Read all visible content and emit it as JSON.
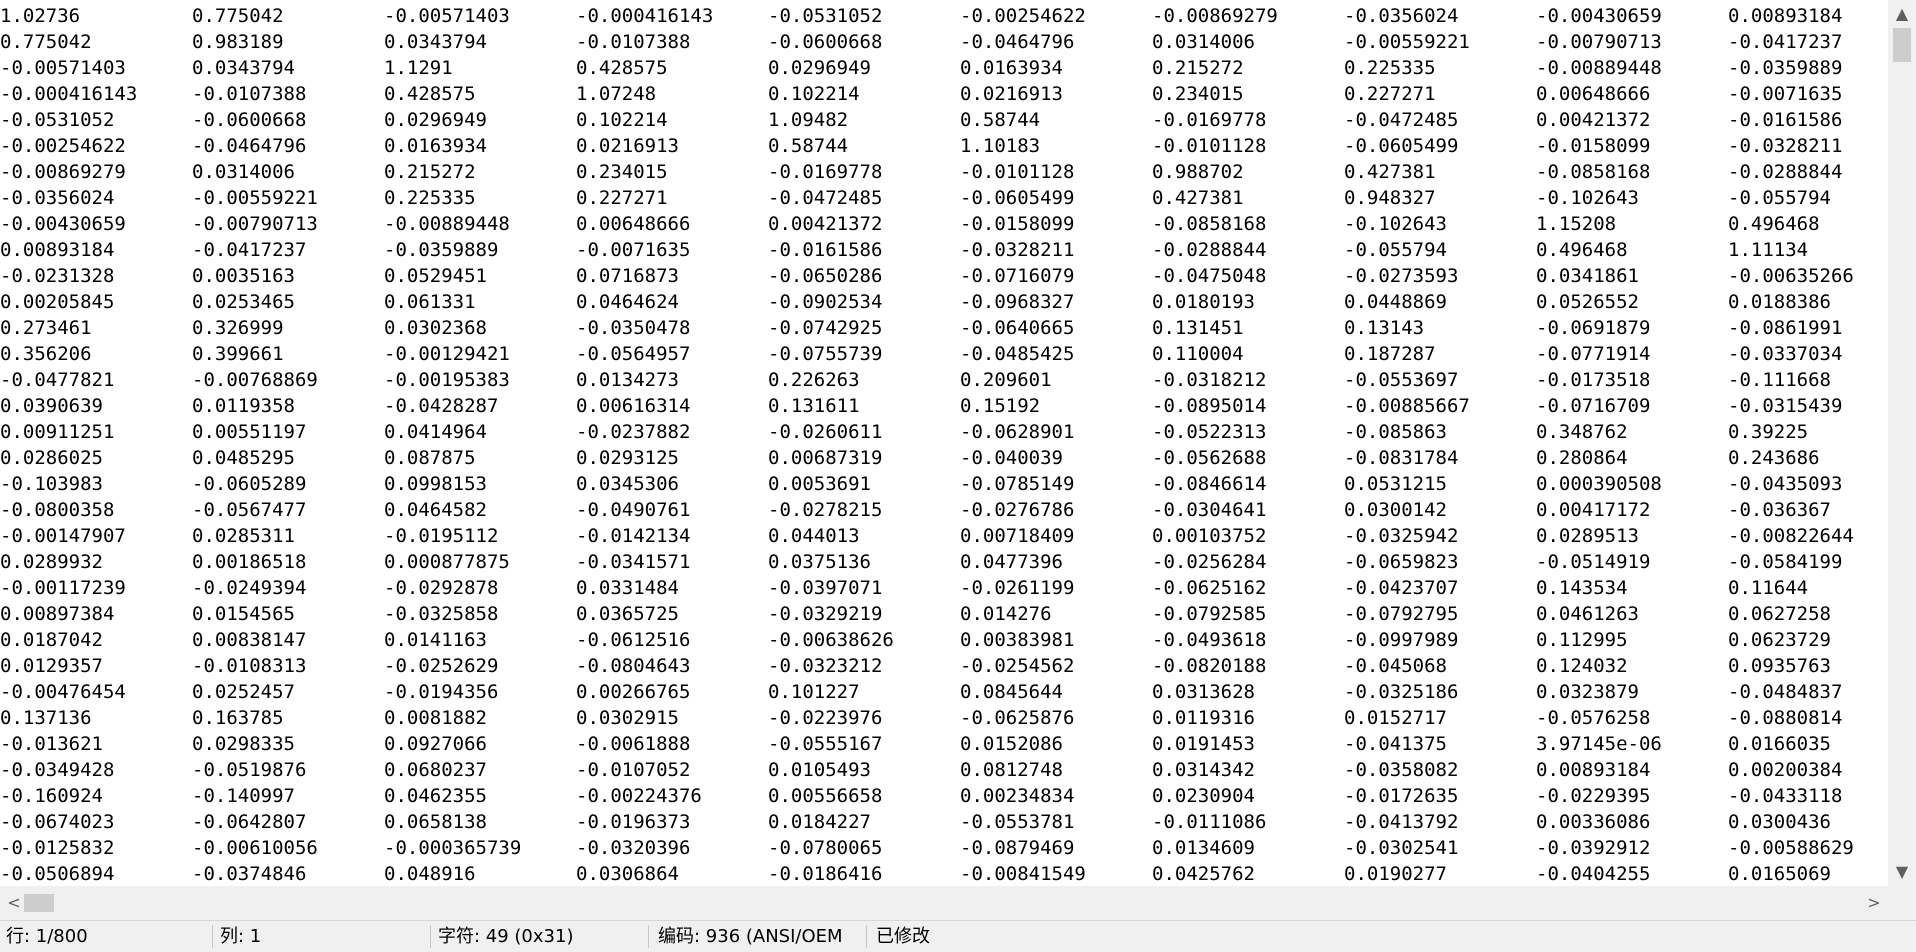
{
  "editor": {
    "rows": [
      [
        "1.02736",
        "0.775042",
        "-0.00571403",
        "-0.000416143",
        "-0.0531052",
        "-0.00254622",
        "-0.00869279",
        "-0.0356024",
        "-0.00430659",
        "0.00893184"
      ],
      [
        "0.775042",
        "0.983189",
        "0.0343794",
        "-0.0107388",
        "-0.0600668",
        "-0.0464796",
        "0.0314006",
        "-0.00559221",
        "-0.00790713",
        "-0.0417237"
      ],
      [
        "-0.00571403",
        "0.0343794",
        "1.1291",
        "0.428575",
        "0.0296949",
        "0.0163934",
        "0.215272",
        "0.225335",
        "-0.00889448",
        "-0.0359889"
      ],
      [
        "-0.000416143",
        "-0.0107388",
        "0.428575",
        "1.07248",
        "0.102214",
        "0.0216913",
        "0.234015",
        "0.227271",
        "0.00648666",
        "-0.0071635"
      ],
      [
        "-0.0531052",
        "-0.0600668",
        "0.0296949",
        "0.102214",
        "1.09482",
        "0.58744",
        "-0.0169778",
        "-0.0472485",
        "0.00421372",
        "-0.0161586"
      ],
      [
        "-0.00254622",
        "-0.0464796",
        "0.0163934",
        "0.0216913",
        "0.58744",
        "1.10183",
        "-0.0101128",
        "-0.0605499",
        "-0.0158099",
        "-0.0328211"
      ],
      [
        "-0.00869279",
        "0.0314006",
        "0.215272",
        "0.234015",
        "-0.0169778",
        "-0.0101128",
        "0.988702",
        "0.427381",
        "-0.0858168",
        "-0.0288844"
      ],
      [
        "-0.0356024",
        "-0.00559221",
        "0.225335",
        "0.227271",
        "-0.0472485",
        "-0.0605499",
        "0.427381",
        "0.948327",
        "-0.102643",
        "-0.055794"
      ],
      [
        "-0.00430659",
        "-0.00790713",
        "-0.00889448",
        "0.00648666",
        "0.00421372",
        "-0.0158099",
        "-0.0858168",
        "-0.102643",
        "1.15208",
        "0.496468"
      ],
      [
        "0.00893184",
        "-0.0417237",
        "-0.0359889",
        "-0.0071635",
        "-0.0161586",
        "-0.0328211",
        "-0.0288844",
        "-0.055794",
        "0.496468",
        "1.11134"
      ],
      [
        "-0.0231328",
        "0.0035163",
        "0.0529451",
        "0.0716873",
        "-0.0650286",
        "-0.0716079",
        "-0.0475048",
        "-0.0273593",
        "0.0341861",
        "-0.00635266"
      ],
      [
        "0.00205845",
        "0.0253465",
        "0.061331",
        "0.0464624",
        "-0.0902534",
        "-0.0968327",
        "0.0180193",
        "0.0448869",
        "0.0526552",
        "0.0188386"
      ],
      [
        "0.273461",
        "0.326999",
        "0.0302368",
        "-0.0350478",
        "-0.0742925",
        "-0.0640665",
        "0.131451",
        "0.13143",
        "-0.0691879",
        "-0.0861991"
      ],
      [
        "0.356206",
        "0.399661",
        "-0.00129421",
        "-0.0564957",
        "-0.0755739",
        "-0.0485425",
        "0.110004",
        "0.187287",
        "-0.0771914",
        "-0.0337034"
      ],
      [
        "-0.0477821",
        "-0.00768869",
        "-0.00195383",
        "0.0134273",
        "0.226263",
        "0.209601",
        "-0.0318212",
        "-0.0553697",
        "-0.0173518",
        "-0.111668"
      ],
      [
        "0.0390639",
        "0.0119358",
        "-0.0428287",
        "0.00616314",
        "0.131611",
        "0.15192",
        "-0.0895014",
        "-0.00885667",
        "-0.0716709",
        "-0.0315439"
      ],
      [
        "0.00911251",
        "0.00551197",
        "0.0414964",
        "-0.0237882",
        "-0.0260611",
        "-0.0628901",
        "-0.0522313",
        "-0.085863",
        "0.348762",
        "0.39225"
      ],
      [
        "0.0286025",
        "0.0485295",
        "0.087875",
        "0.0293125",
        "0.00687319",
        "-0.040039",
        "-0.0562688",
        "-0.0831784",
        "0.280864",
        "0.243686"
      ],
      [
        "-0.103983",
        "-0.0605289",
        "0.0998153",
        "0.0345306",
        "0.0053691",
        "-0.0785149",
        "-0.0846614",
        "0.0531215",
        "0.000390508",
        "-0.0435093"
      ],
      [
        "-0.0800358",
        "-0.0567477",
        "0.0464582",
        "-0.0490761",
        "-0.0278215",
        "-0.0276786",
        "-0.0304641",
        "0.0300142",
        "0.00417172",
        "-0.036367"
      ],
      [
        "-0.00147907",
        "0.0285311",
        "-0.0195112",
        "-0.0142134",
        "0.044013",
        "0.00718409",
        "0.00103752",
        "-0.0325942",
        "0.0289513",
        "-0.00822644"
      ],
      [
        "0.0289932",
        "0.00186518",
        "0.000877875",
        "-0.0341571",
        "0.0375136",
        "0.0477396",
        "-0.0256284",
        "-0.0659823",
        "-0.0514919",
        "-0.0584199"
      ],
      [
        "-0.00117239",
        "-0.0249394",
        "-0.0292878",
        "0.0331484",
        "-0.0397071",
        "-0.0261199",
        "-0.0625162",
        "-0.0423707",
        "0.143534",
        "0.11644"
      ],
      [
        "0.00897384",
        "0.0154565",
        "-0.0325858",
        "0.0365725",
        "-0.0329219",
        "0.014276",
        "-0.0792585",
        "-0.0792795",
        "0.0461263",
        "0.0627258"
      ],
      [
        "0.0187042",
        "0.00838147",
        "0.0141163",
        "-0.0612516",
        "-0.00638626",
        "0.00383981",
        "-0.0493618",
        "-0.0997989",
        "0.112995",
        "0.0623729"
      ],
      [
        "0.0129357",
        "-0.0108313",
        "-0.0252629",
        "-0.0804643",
        "-0.0323212",
        "-0.0254562",
        "-0.0820188",
        "-0.045068",
        "0.124032",
        "0.0935763"
      ],
      [
        "-0.00476454",
        "0.0252457",
        "-0.0194356",
        "0.00266765",
        "0.101227",
        "0.0845644",
        "0.0313628",
        "-0.0325186",
        "0.0323879",
        "-0.0484837"
      ],
      [
        "0.137136",
        "0.163785",
        "0.0081882",
        "0.0302915",
        "-0.0223976",
        "-0.0625876",
        "0.0119316",
        "0.0152717",
        "-0.0576258",
        "-0.0880814"
      ],
      [
        "-0.013621",
        "0.0298335",
        "0.0927066",
        "-0.0061888",
        "-0.0555167",
        "0.0152086",
        "0.0191453",
        "-0.041375",
        "3.97145e-06",
        "0.0166035"
      ],
      [
        "-0.0349428",
        "-0.0519876",
        "0.0680237",
        "-0.0107052",
        "0.0105493",
        "0.0812748",
        "0.0314342",
        "-0.0358082",
        "0.00893184",
        "0.00200384"
      ],
      [
        "-0.160924",
        "-0.140997",
        "0.0462355",
        "-0.00224376",
        "0.00556658",
        "0.00234834",
        "0.0230904",
        "-0.0172635",
        "-0.0229395",
        "-0.0433118"
      ],
      [
        "-0.0674023",
        "-0.0642807",
        "0.0658138",
        "-0.0196373",
        "0.0184227",
        "-0.0553781",
        "-0.0111086",
        "-0.0413792",
        "0.00336086",
        "0.0300436"
      ],
      [
        "-0.0125832",
        "-0.00610056",
        "-0.000365739",
        "-0.0320396",
        "-0.0780065",
        "-0.0879469",
        "0.0134609",
        "-0.0302541",
        "-0.0392912",
        "-0.00588629"
      ],
      [
        "-0.0506894",
        "-0.0374846",
        "0.048916",
        "0.0306864",
        "-0.0186416",
        "-0.00841549",
        "0.0425762",
        "0.0190277",
        "-0.0404255",
        "0.0165069"
      ]
    ]
  },
  "scrollbar": {
    "up_icon": "▲",
    "down_icon": "▼",
    "left_icon": "<",
    "right_icon": ">"
  },
  "statusbar": {
    "line": "行: 1/800",
    "column": "列: 1",
    "char": "字符: 49 (0x31)",
    "encoding": "编码: 936  (ANSI/OEM",
    "modified": "已修改"
  }
}
